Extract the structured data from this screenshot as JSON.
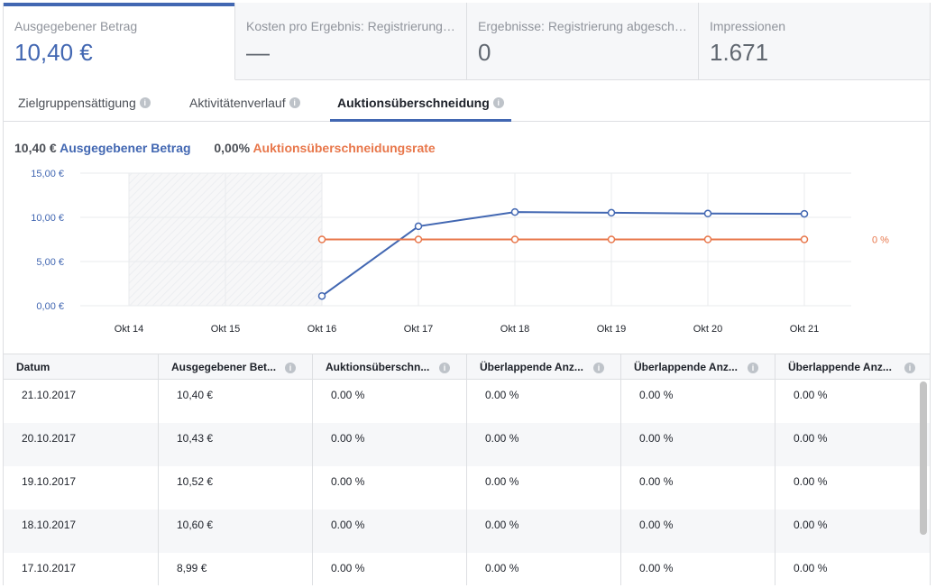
{
  "cards": [
    {
      "label": "Ausgegebener Betrag",
      "value": "10,40 €"
    },
    {
      "label": "Kosten pro Ergebnis: Registrierung ...",
      "value": "—"
    },
    {
      "label": "Ergebnisse: Registrierung abgeschl...",
      "value": "0"
    },
    {
      "label": "Impressionen",
      "value": "1.671"
    }
  ],
  "tabs": [
    {
      "label": "Zielgruppensättigung"
    },
    {
      "label": "Aktivitätenverlauf"
    },
    {
      "label": "Auktionsüberschneidung"
    }
  ],
  "summary": {
    "spend_value": "10,40 €",
    "spend_label": "Ausgegebener Betrag",
    "rate_value": "0,00%",
    "rate_label": "Auktionsüberschneidungsrate"
  },
  "colors": {
    "accent": "#4267b2",
    "orange": "#e8774b"
  },
  "chart_data": {
    "type": "line",
    "x": [
      "Okt 14",
      "Okt 15",
      "Okt 16",
      "Okt 17",
      "Okt 18",
      "Okt 19",
      "Okt 20",
      "Okt 21"
    ],
    "y_ticks": [
      "15,00 €",
      "10,00 €",
      "5,00 €",
      "0,00 €"
    ],
    "ylim": [
      0,
      15
    ],
    "right_label": "0 %",
    "series": [
      {
        "name": "Ausgegebener Betrag",
        "color": "#4267b2",
        "values": [
          null,
          null,
          1.1,
          8.99,
          10.6,
          10.52,
          10.43,
          10.4
        ]
      },
      {
        "name": "Auktionsüberschneidungsrate",
        "color": "#e8774b",
        "values": [
          null,
          null,
          0,
          0,
          0,
          0,
          0,
          0
        ]
      }
    ]
  },
  "table": {
    "headers": [
      "Datum",
      "Ausgegebener Bet...",
      "Auktionsüberschn...",
      "Überlappende Anz...",
      "Überlappende Anz...",
      "Überlappende Anz..."
    ],
    "rows": [
      [
        "21.10.2017",
        "10,40 €",
        "0.00 %",
        "0.00 %",
        "0.00 %",
        "0.00 %"
      ],
      [
        "20.10.2017",
        "10,43 €",
        "0.00 %",
        "0.00 %",
        "0.00 %",
        "0.00 %"
      ],
      [
        "19.10.2017",
        "10,52 €",
        "0.00 %",
        "0.00 %",
        "0.00 %",
        "0.00 %"
      ],
      [
        "18.10.2017",
        "10,60 €",
        "0.00 %",
        "0.00 %",
        "0.00 %",
        "0.00 %"
      ],
      [
        "17.10.2017",
        "8,99 €",
        "0.00 %",
        "0.00 %",
        "0.00 %",
        "0.00 %"
      ]
    ]
  }
}
